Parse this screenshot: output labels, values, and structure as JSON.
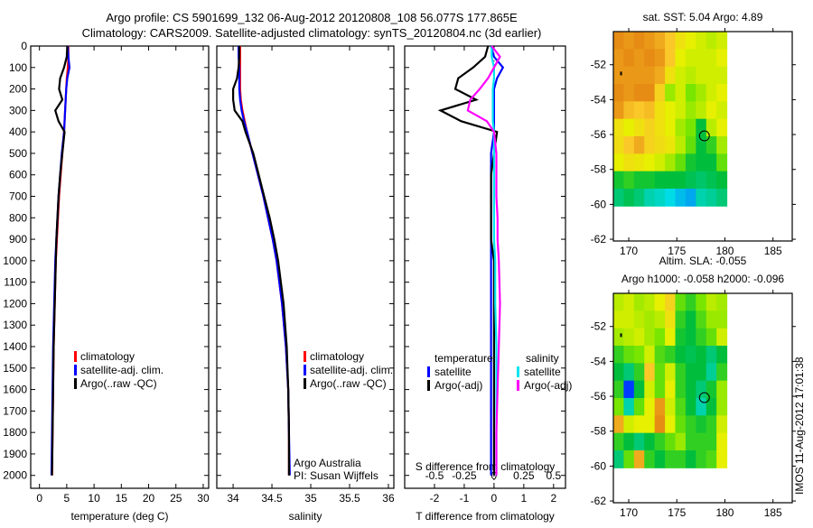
{
  "title": {
    "line1": "Argo profile: CS 5901699_132 06-Aug-2012 20120808_108 56.077S 177.865E",
    "line2": "Climatology: CARS2009. Satellite-adjusted climatology: synTS_20120804.nc (3d earlier)"
  },
  "credit": {
    "line1": "Argo Australia",
    "line2": "PI: Susan Wijffels"
  },
  "timestamp": "IMOS 11-Aug-2012 17:01:38",
  "colors": {
    "clim": "#ff0000",
    "sat": "#0000ff",
    "argo": "#000000",
    "sat_s": "#00e5ee",
    "argo_s": "#ff00ff"
  },
  "chart_data": [
    {
      "type": "line",
      "id": "temperature",
      "xlabel": "temperature (deg C)",
      "ylabel": "",
      "xlim": [
        -1.6,
        31
      ],
      "ylim": [
        2060,
        0
      ],
      "xticks": [
        0,
        5,
        10,
        15,
        20,
        25,
        30
      ],
      "yticks": [
        0,
        100,
        200,
        300,
        400,
        500,
        600,
        700,
        800,
        900,
        1000,
        1100,
        1200,
        1300,
        1400,
        1500,
        1600,
        1700,
        1800,
        1900,
        2000
      ],
      "depth": [
        0,
        50,
        100,
        150,
        200,
        250,
        300,
        350,
        400,
        500,
        600,
        700,
        800,
        900,
        1000,
        1200,
        1400,
        1600,
        1800,
        2000
      ],
      "series": [
        {
          "name": "climatology",
          "color": "#ff0000",
          "values": [
            5.3,
            5.3,
            5.2,
            5.0,
            4.9,
            4.8,
            4.7,
            4.6,
            4.5,
            4.2,
            3.9,
            3.6,
            3.4,
            3.2,
            3.0,
            2.8,
            2.6,
            2.5,
            2.4,
            2.3
          ]
        },
        {
          "name": "satellite-adj. clim.",
          "color": "#0000ff",
          "values": [
            5.2,
            5.3,
            5.5,
            5.1,
            4.9,
            4.8,
            4.7,
            4.6,
            4.5,
            4.1,
            3.8,
            3.5,
            3.3,
            3.1,
            2.9,
            2.7,
            2.5,
            2.4,
            2.3,
            2.2
          ]
        },
        {
          "name": "Argo(..raw -QC)",
          "color": "#000000",
          "values": [
            5.1,
            5.0,
            4.5,
            3.8,
            3.6,
            4.2,
            2.9,
            3.5,
            4.6,
            4.2,
            3.8,
            3.5,
            3.3,
            3.1,
            3.0,
            2.8,
            2.6,
            2.5,
            2.4,
            2.3
          ]
        }
      ]
    },
    {
      "type": "line",
      "id": "salinity",
      "xlabel": "salinity",
      "ylabel": "",
      "xlim": [
        33.79,
        36.07
      ],
      "ylim": [
        2060,
        0
      ],
      "xticks": [
        34,
        34.5,
        35,
        35.5,
        36
      ],
      "depth": [
        0,
        50,
        100,
        150,
        200,
        250,
        300,
        350,
        400,
        500,
        600,
        700,
        800,
        900,
        1000,
        1200,
        1400,
        1600,
        1800,
        2000
      ],
      "series": [
        {
          "name": "climatology",
          "color": "#ff0000",
          "values": [
            34.09,
            34.09,
            34.09,
            34.09,
            34.09,
            34.1,
            34.12,
            34.15,
            34.18,
            34.25,
            34.32,
            34.39,
            34.45,
            34.51,
            34.56,
            34.63,
            34.68,
            34.71,
            34.72,
            34.72
          ]
        },
        {
          "name": "satellite-adj. clim.",
          "color": "#0000ff",
          "values": [
            34.07,
            34.07,
            34.08,
            34.08,
            34.08,
            34.09,
            34.11,
            34.14,
            34.18,
            34.25,
            34.32,
            34.39,
            34.45,
            34.51,
            34.56,
            34.63,
            34.68,
            34.71,
            34.72,
            34.73
          ]
        },
        {
          "name": "Argo(..raw -QC)",
          "color": "#000000",
          "values": [
            34.08,
            34.08,
            34.07,
            34.05,
            34.0,
            34.0,
            34.02,
            34.12,
            34.16,
            34.26,
            34.33,
            34.4,
            34.47,
            34.53,
            34.58,
            34.65,
            34.69,
            34.71,
            34.72,
            34.72
          ]
        }
      ]
    },
    {
      "type": "line",
      "id": "difference",
      "xlabel": "T difference from climatology",
      "x2label": "S difference from climatology",
      "xlim": [
        -3,
        2.4
      ],
      "ylim": [
        2060,
        0
      ],
      "xticks": [
        -2,
        -1,
        0,
        1,
        2
      ],
      "x2ticks": [
        -0.5,
        -0.25,
        0,
        0.25,
        0.5
      ],
      "x2_scale": 4,
      "legend_titles": [
        "temperature",
        "salinity"
      ],
      "depth": [
        0,
        50,
        100,
        150,
        200,
        250,
        300,
        350,
        400,
        500,
        600,
        700,
        800,
        900,
        1000,
        1200,
        1400,
        1600,
        1800,
        2000
      ],
      "series": [
        {
          "name": "satellite",
          "group": "temperature",
          "color": "#0000ff",
          "values": [
            -0.1,
            0,
            0.3,
            0.1,
            0,
            0,
            0,
            0,
            0,
            -0.1,
            -0.1,
            -0.1,
            -0.1,
            -0.1,
            -0.1,
            -0.1,
            -0.1,
            -0.1,
            -0.1,
            -0.1
          ]
        },
        {
          "name": "Argo(-adj)",
          "group": "temperature",
          "color": "#000000",
          "values": [
            -0.2,
            -0.3,
            -0.7,
            -1.2,
            -1.3,
            -0.6,
            -1.8,
            -1.1,
            0.1,
            0,
            -0.1,
            -0.1,
            -0.1,
            -0.1,
            0,
            0,
            0,
            0,
            0,
            0
          ]
        },
        {
          "name": "satellite",
          "group": "salinity",
          "color": "#00e5ee",
          "values": [
            -0.02,
            -0.02,
            0,
            0,
            -0.01,
            -0.01,
            -0.01,
            -0.01,
            0,
            0,
            0,
            0,
            0,
            0,
            0.01,
            0.01,
            0.02,
            0.02,
            0.02,
            0.02
          ]
        },
        {
          "name": "Argo(-adj)",
          "group": "salinity",
          "color": "#ff00ff",
          "values": [
            -0.02,
            0.05,
            0,
            -0.05,
            -0.12,
            -0.2,
            -0.22,
            -0.06,
            0,
            0.02,
            0.02,
            0.02,
            0.03,
            0.03,
            0.04,
            0.05,
            0.04,
            0.03,
            0.02,
            0.02
          ]
        }
      ]
    },
    {
      "type": "heatmap",
      "id": "sst-map",
      "title": "sat. SST: 5.04  Argo: 4.89",
      "xlim": [
        168.4,
        187
      ],
      "ylim": [
        -62.1,
        -50.1
      ],
      "xticks": [
        170,
        175,
        180,
        185
      ],
      "yticks": [
        -52,
        -54,
        -56,
        -58,
        -60,
        -62
      ],
      "grid_extent": {
        "lon": [
          168.4,
          180.2
        ],
        "lat": [
          -50.1,
          -60.1
        ]
      },
      "float_position": {
        "lon": 177.865,
        "lat": -56.077
      },
      "values": [
        [
          0.9,
          0.88,
          0.9,
          0.88,
          0.85,
          0.8,
          0.75,
          0.72,
          0.7,
          0.68,
          0.7
        ],
        [
          0.88,
          0.9,
          0.88,
          0.9,
          0.88,
          0.8,
          0.72,
          0.7,
          0.7,
          0.7,
          0.72
        ],
        [
          0.88,
          0.88,
          0.88,
          0.88,
          0.85,
          0.75,
          0.7,
          0.68,
          0.7,
          0.7,
          0.7
        ],
        [
          0.9,
          0.88,
          0.9,
          0.9,
          0.78,
          0.65,
          0.7,
          0.62,
          0.66,
          0.7,
          0.72
        ],
        [
          0.88,
          0.82,
          0.8,
          0.82,
          0.75,
          0.72,
          0.7,
          0.65,
          0.68,
          0.72,
          0.7
        ],
        [
          0.75,
          0.72,
          0.75,
          0.78,
          0.75,
          0.72,
          0.66,
          0.62,
          0.5,
          0.68,
          0.72
        ],
        [
          0.76,
          0.8,
          0.85,
          0.78,
          0.76,
          0.74,
          0.68,
          0.6,
          0.5,
          0.55,
          0.66
        ],
        [
          0.72,
          0.75,
          0.74,
          0.72,
          0.7,
          0.66,
          0.6,
          0.52,
          0.5,
          0.5,
          0.6
        ],
        [
          0.52,
          0.55,
          0.52,
          0.52,
          0.5,
          0.5,
          0.5,
          0.48,
          0.46,
          0.48,
          0.5
        ],
        [
          0.45,
          0.48,
          0.45,
          0.4,
          0.38,
          0.35,
          0.32,
          0.3,
          0.4,
          0.42,
          0.45
        ]
      ]
    },
    {
      "type": "heatmap",
      "id": "sla-map",
      "title": "Altim. SLA: -0.055",
      "subtitle": "Argo h1000: -0.058 h2000: -0.096",
      "xlim": [
        168.4,
        187
      ],
      "ylim": [
        -62.1,
        -50.1
      ],
      "xticks": [
        170,
        175,
        180,
        185
      ],
      "yticks": [
        -52,
        -54,
        -56,
        -58,
        -60,
        -62
      ],
      "grid_extent": {
        "lon": [
          168.4,
          180.2
        ],
        "lat": [
          -50.1,
          -60.1
        ]
      },
      "float_position": {
        "lon": 177.865,
        "lat": -56.077
      },
      "values": [
        [
          0.68,
          0.7,
          0.66,
          0.68,
          0.72,
          0.78,
          0.6,
          0.55,
          0.62,
          0.68,
          0.66
        ],
        [
          0.7,
          0.7,
          0.68,
          0.66,
          0.68,
          0.75,
          0.55,
          0.5,
          0.58,
          0.65,
          0.65
        ],
        [
          0.66,
          0.68,
          0.7,
          0.66,
          0.62,
          0.72,
          0.52,
          0.5,
          0.55,
          0.6,
          0.7
        ],
        [
          0.55,
          0.6,
          0.62,
          0.7,
          0.58,
          0.55,
          0.5,
          0.48,
          0.5,
          0.45,
          0.5
        ],
        [
          0.5,
          0.45,
          0.55,
          0.8,
          0.6,
          0.7,
          0.55,
          0.5,
          0.5,
          0.42,
          0.55
        ],
        [
          0.55,
          0.2,
          0.5,
          0.7,
          0.6,
          0.72,
          0.55,
          0.5,
          0.45,
          0.52,
          0.65
        ],
        [
          0.62,
          0.4,
          0.6,
          0.72,
          0.88,
          0.7,
          0.58,
          0.5,
          0.4,
          0.5,
          0.65
        ],
        [
          0.85,
          0.7,
          0.72,
          0.72,
          0.9,
          0.72,
          0.6,
          0.55,
          0.52,
          0.55,
          0.7
        ],
        [
          0.55,
          0.5,
          0.45,
          0.5,
          0.55,
          0.6,
          0.65,
          0.55,
          0.55,
          0.55,
          0.72
        ],
        [
          0.45,
          0.6,
          0.85,
          0.55,
          0.5,
          0.55,
          0.55,
          0.5,
          0.55,
          0.58,
          0.72
        ]
      ]
    }
  ]
}
